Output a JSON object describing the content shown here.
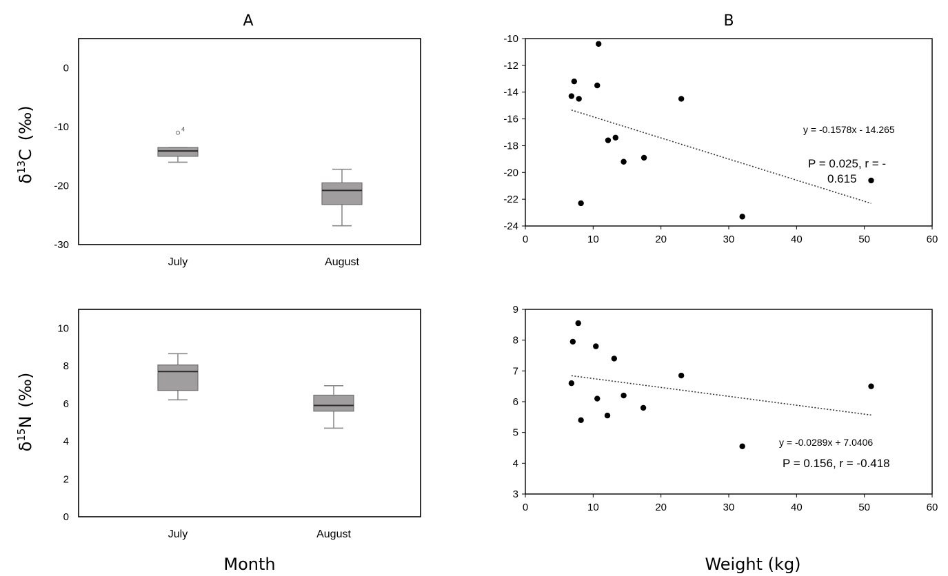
{
  "panels": {
    "a": "A",
    "b": "B"
  },
  "xtitles": {
    "month": "Month",
    "weight": "Weight (kg)"
  },
  "ylabels": {
    "carbon": {
      "prefix": "δ",
      "sup": "13",
      "elem": "C",
      "unit": "(‰)"
    },
    "nitrogen": {
      "prefix": "δ",
      "sup": "15",
      "elem": "N",
      "unit": "(‰)"
    }
  },
  "chart_data": [
    {
      "id": "box_carbon",
      "type": "box",
      "categories": [
        "July",
        "August"
      ],
      "ylim": [
        -30,
        5
      ],
      "yticks": [
        0,
        -10,
        -20,
        -30
      ],
      "boxes": [
        {
          "category": "July",
          "min": -16.0,
          "q1": -15.0,
          "median": -14.1,
          "q3": -13.5,
          "max": -13.5,
          "outliers": [
            {
              "value": -11.0,
              "label": "4"
            }
          ]
        },
        {
          "category": "August",
          "min": -26.8,
          "q1": -23.2,
          "median": -20.8,
          "q3": -19.5,
          "max": -17.2,
          "outliers": []
        }
      ]
    },
    {
      "id": "box_nitrogen",
      "type": "box",
      "categories": [
        "July",
        "August"
      ],
      "ylim": [
        0,
        11
      ],
      "yticks": [
        0,
        2,
        4,
        6,
        8,
        10
      ],
      "boxes": [
        {
          "category": "July",
          "min": 6.2,
          "q1": 6.7,
          "median": 7.7,
          "q3": 8.05,
          "max": 8.65,
          "outliers": []
        },
        {
          "category": "August",
          "min": 4.7,
          "q1": 5.6,
          "median": 5.9,
          "q3": 6.45,
          "max": 6.95,
          "outliers": []
        }
      ]
    },
    {
      "id": "scatter_carbon",
      "type": "scatter",
      "xlim": [
        0,
        60
      ],
      "ylim": [
        -24,
        -10
      ],
      "xticks": [
        0,
        10,
        20,
        30,
        40,
        50,
        60
      ],
      "yticks": [
        -10,
        -12,
        -14,
        -16,
        -18,
        -20,
        -22,
        -24
      ],
      "points": [
        {
          "x": 6.8,
          "y": -14.3
        },
        {
          "x": 7.2,
          "y": -13.2
        },
        {
          "x": 7.9,
          "y": -14.5
        },
        {
          "x": 8.2,
          "y": -22.3
        },
        {
          "x": 10.6,
          "y": -13.5
        },
        {
          "x": 10.8,
          "y": -10.4
        },
        {
          "x": 12.2,
          "y": -17.6
        },
        {
          "x": 13.3,
          "y": -17.4
        },
        {
          "x": 14.5,
          "y": -19.2
        },
        {
          "x": 17.5,
          "y": -18.9
        },
        {
          "x": 23.0,
          "y": -14.5
        },
        {
          "x": 32.0,
          "y": -23.3
        },
        {
          "x": 51.0,
          "y": -20.6
        }
      ],
      "trend": {
        "slope": -0.1578,
        "intercept": -14.265,
        "x_from": 6.8,
        "x_to": 51.0
      },
      "equation": "y = -0.1578x - 14.265",
      "stats_line1": "P = 0.025, r = -",
      "stats_line2": "0.615"
    },
    {
      "id": "scatter_nitrogen",
      "type": "scatter",
      "xlim": [
        0,
        60
      ],
      "ylim": [
        3,
        9
      ],
      "xticks": [
        0,
        10,
        20,
        30,
        40,
        50,
        60
      ],
      "yticks": [
        3,
        4,
        5,
        6,
        7,
        8,
        9
      ],
      "points": [
        {
          "x": 6.8,
          "y": 6.6
        },
        {
          "x": 7.0,
          "y": 7.95
        },
        {
          "x": 7.8,
          "y": 8.55
        },
        {
          "x": 8.2,
          "y": 5.4
        },
        {
          "x": 10.4,
          "y": 7.8
        },
        {
          "x": 10.6,
          "y": 6.1
        },
        {
          "x": 12.1,
          "y": 5.55
        },
        {
          "x": 13.1,
          "y": 7.4
        },
        {
          "x": 14.5,
          "y": 6.2
        },
        {
          "x": 17.4,
          "y": 5.8
        },
        {
          "x": 23.0,
          "y": 6.85
        },
        {
          "x": 32.0,
          "y": 4.55
        },
        {
          "x": 51.0,
          "y": 6.5
        }
      ],
      "trend": {
        "slope": -0.0289,
        "intercept": 7.0406,
        "x_from": 6.8,
        "x_to": 51.0
      },
      "equation": "y = -0.0289x + 7.0406",
      "stats_line1": "P = 0.156, r = -0.418"
    }
  ],
  "colors": {
    "box_fill": "#a09e9e",
    "whisker": "#8a8a8a",
    "median": "#2b2b2b",
    "frame": "#000000",
    "point": "#000000"
  }
}
